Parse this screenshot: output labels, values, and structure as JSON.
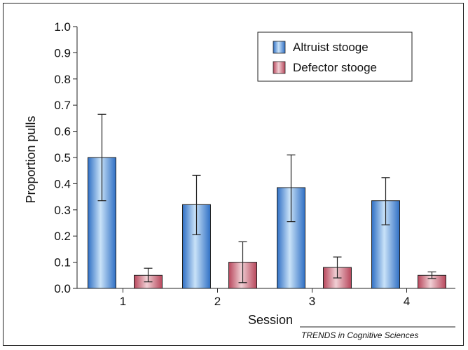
{
  "chart_data": {
    "type": "bar",
    "title": "",
    "xlabel": "Session",
    "ylabel": "Proportion pulls",
    "ylim": [
      0,
      1.0
    ],
    "yticks": [
      "0.0",
      "0.1",
      "0.2",
      "0.3",
      "0.4",
      "0.5",
      "0.6",
      "0.7",
      "0.8",
      "0.9",
      "1.0"
    ],
    "categories": [
      "1",
      "2",
      "3",
      "4"
    ],
    "series": [
      {
        "name": "Altruist stooge",
        "color": "#3a86d4",
        "values": [
          0.5,
          0.32,
          0.385,
          0.335
        ],
        "error_low": [
          0.335,
          0.205,
          0.255,
          0.243
        ],
        "error_high": [
          0.665,
          0.432,
          0.51,
          0.423
        ]
      },
      {
        "name": "Defector stooge",
        "color": "#a83248",
        "values": [
          0.05,
          0.1,
          0.08,
          0.05
        ],
        "error_low": [
          0.025,
          0.022,
          0.04,
          0.038
        ],
        "error_high": [
          0.077,
          0.178,
          0.12,
          0.063
        ]
      }
    ],
    "legend": {
      "position": "top-right"
    },
    "grid": false
  },
  "footer": "TRENDS in Cognitive Sciences"
}
